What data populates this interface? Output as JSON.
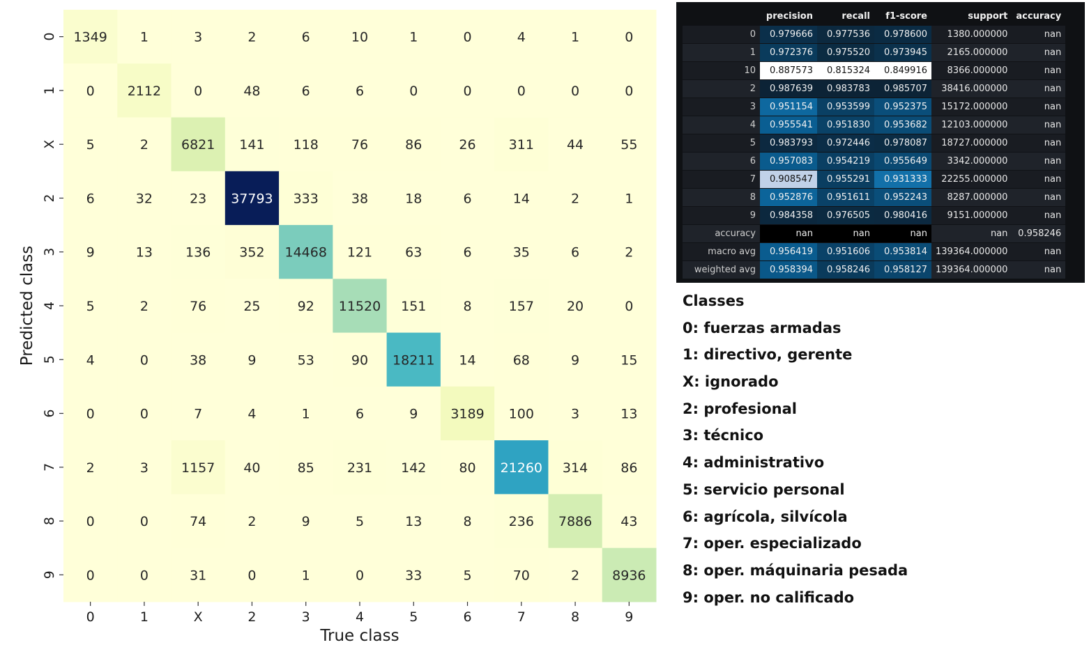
{
  "chart_data": [
    {
      "type": "heatmap",
      "xlabel": "True class",
      "ylabel": "Predicted class",
      "x_labels": [
        "0",
        "1",
        "X",
        "2",
        "3",
        "4",
        "5",
        "6",
        "7",
        "8",
        "9"
      ],
      "y_labels": [
        "0",
        "1",
        "X",
        "2",
        "3",
        "4",
        "5",
        "6",
        "7",
        "8",
        "9"
      ],
      "colormap": "YlGnBu",
      "value_range": [
        0,
        37793
      ],
      "matrix": [
        [
          1349,
          1,
          3,
          2,
          6,
          10,
          1,
          0,
          4,
          1,
          0
        ],
        [
          0,
          2112,
          0,
          48,
          6,
          6,
          0,
          0,
          0,
          0,
          0
        ],
        [
          5,
          2,
          6821,
          141,
          118,
          76,
          86,
          26,
          311,
          44,
          55
        ],
        [
          6,
          32,
          23,
          37793,
          333,
          38,
          18,
          6,
          14,
          2,
          1
        ],
        [
          9,
          13,
          136,
          352,
          14468,
          121,
          63,
          6,
          35,
          6,
          2
        ],
        [
          5,
          2,
          76,
          25,
          92,
          11520,
          151,
          8,
          157,
          20,
          0
        ],
        [
          4,
          0,
          38,
          9,
          53,
          90,
          18211,
          14,
          68,
          9,
          15
        ],
        [
          0,
          0,
          7,
          4,
          1,
          6,
          9,
          3189,
          100,
          3,
          13
        ],
        [
          2,
          3,
          1157,
          40,
          85,
          231,
          142,
          80,
          21260,
          314,
          86
        ],
        [
          0,
          0,
          74,
          2,
          9,
          5,
          13,
          8,
          236,
          7886,
          43
        ],
        [
          0,
          0,
          31,
          0,
          1,
          0,
          33,
          5,
          70,
          2,
          8936
        ]
      ]
    },
    {
      "type": "table",
      "columns": [
        "precision",
        "recall",
        "f1-score",
        "support",
        "accuracy"
      ],
      "colored_columns": [
        "precision",
        "recall",
        "f1-score"
      ],
      "rows": [
        {
          "label": "0",
          "values": [
            "0.979666",
            "0.977536",
            "0.978600",
            "1380.000000",
            "nan"
          ]
        },
        {
          "label": "1",
          "values": [
            "0.972376",
            "0.975520",
            "0.973945",
            "2165.000000",
            "nan"
          ]
        },
        {
          "label": "10",
          "values": [
            "0.887573",
            "0.815324",
            "0.849916",
            "8366.000000",
            "nan"
          ]
        },
        {
          "label": "2",
          "values": [
            "0.987639",
            "0.983783",
            "0.985707",
            "38416.000000",
            "nan"
          ]
        },
        {
          "label": "3",
          "values": [
            "0.951154",
            "0.953599",
            "0.952375",
            "15172.000000",
            "nan"
          ]
        },
        {
          "label": "4",
          "values": [
            "0.955541",
            "0.951830",
            "0.953682",
            "12103.000000",
            "nan"
          ]
        },
        {
          "label": "5",
          "values": [
            "0.983793",
            "0.972446",
            "0.978087",
            "18727.000000",
            "nan"
          ]
        },
        {
          "label": "6",
          "values": [
            "0.957083",
            "0.954219",
            "0.955649",
            "3342.000000",
            "nan"
          ]
        },
        {
          "label": "7",
          "values": [
            "0.908547",
            "0.955291",
            "0.931333",
            "22255.000000",
            "nan"
          ]
        },
        {
          "label": "8",
          "values": [
            "0.952876",
            "0.951611",
            "0.952243",
            "8287.000000",
            "nan"
          ]
        },
        {
          "label": "9",
          "values": [
            "0.984358",
            "0.976505",
            "0.980416",
            "9151.000000",
            "nan"
          ]
        },
        {
          "label": "accuracy",
          "values": [
            "nan",
            "nan",
            "nan",
            "nan",
            "0.958246"
          ]
        },
        {
          "label": "macro avg",
          "values": [
            "0.956419",
            "0.951606",
            "0.953814",
            "139364.000000",
            "nan"
          ]
        },
        {
          "label": "weighted avg",
          "values": [
            "0.958394",
            "0.958246",
            "0.958127",
            "139364.000000",
            "nan"
          ]
        }
      ]
    }
  ],
  "legend": {
    "title": "Classes",
    "items": [
      "0: fuerzas armadas",
      "1: directivo, gerente",
      "X: ignorado",
      "2: profesional",
      "3: técnico",
      "4: administrativo",
      "5: servicio personal",
      "6: agrícola, silvícola",
      "7: oper. especializado",
      "8: oper. máquinaria pesada",
      "9: oper. no calificado"
    ]
  }
}
